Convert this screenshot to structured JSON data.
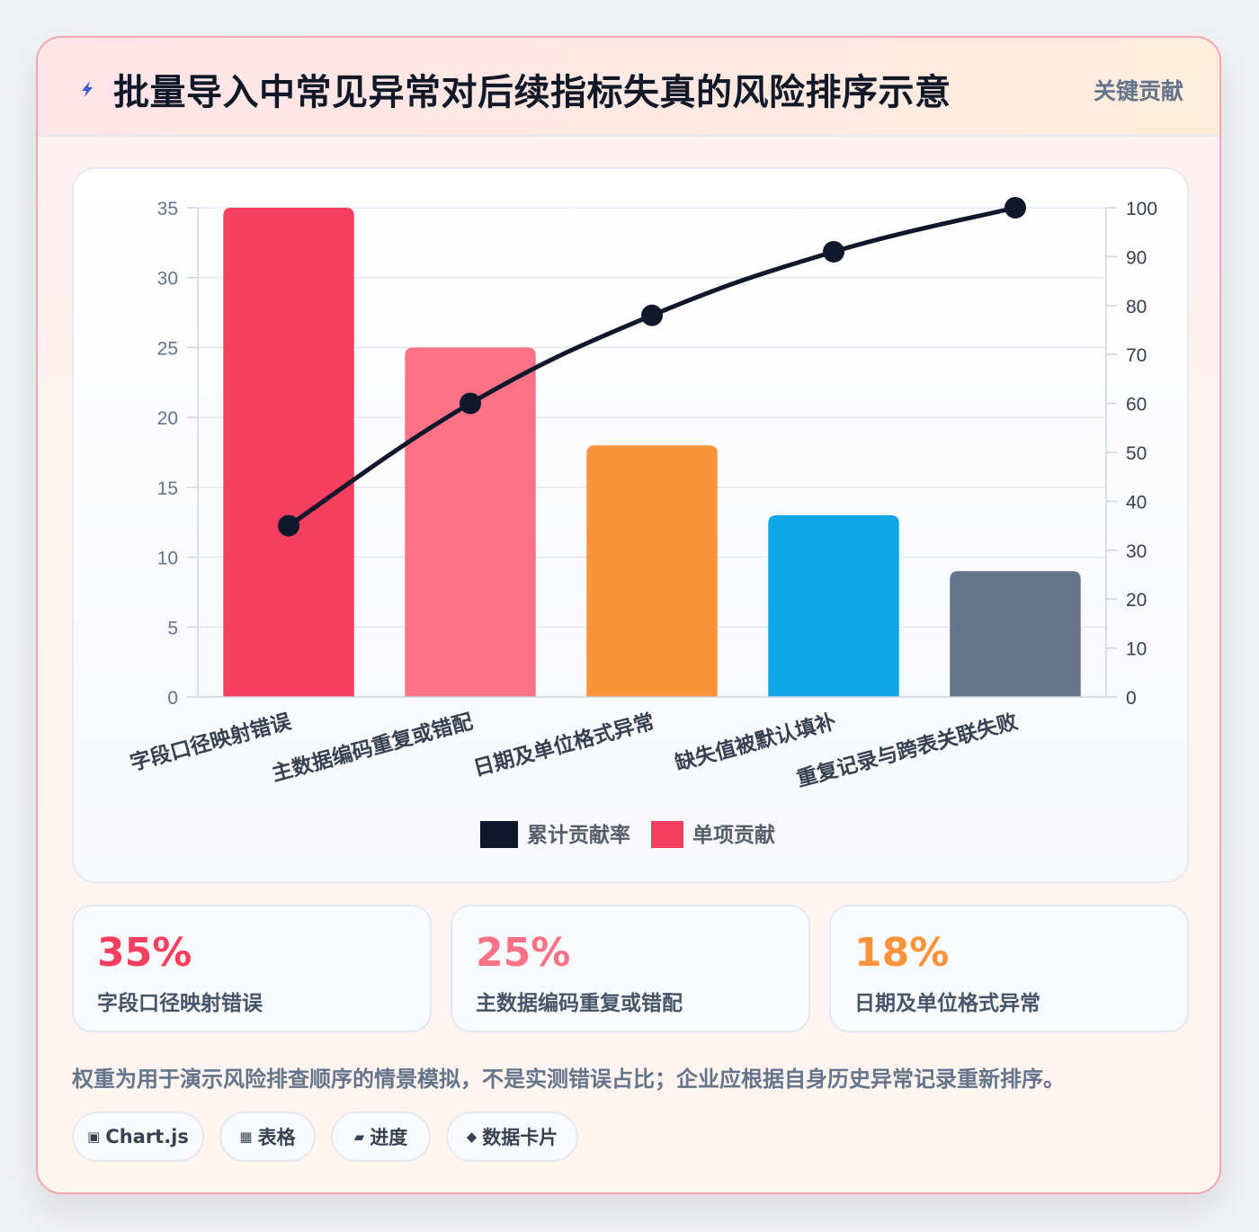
{
  "header": {
    "title": "批量导入中常见异常对后续指标失真的风险排序示意",
    "badge": "关键贡献",
    "icon": "lightning-icon",
    "icon_color": "#3b5bdb"
  },
  "chart_data": {
    "type": "bar",
    "categories": [
      "字段口径映射错误",
      "主数据编码重复或错配",
      "日期及单位格式异常",
      "缺失值被默认填补",
      "重复记录与跨表关联失败"
    ],
    "series": [
      {
        "name": "单项贡献",
        "type": "bar",
        "axis": "left",
        "values": [
          35,
          25,
          18,
          13,
          9
        ],
        "colors": [
          "#f43f5e",
          "#fb7185",
          "#fb923c",
          "#0ea5e9",
          "#64748b"
        ]
      },
      {
        "name": "累计贡献率",
        "type": "line",
        "axis": "right",
        "values": [
          35,
          60,
          78,
          91,
          100
        ],
        "color": "#0f172a"
      }
    ],
    "y_left": {
      "min": 0,
      "max": 35,
      "ticks": [
        0,
        5,
        10,
        15,
        20,
        25,
        30,
        35
      ]
    },
    "y_right": {
      "min": 0,
      "max": 100,
      "ticks": [
        0,
        10,
        20,
        30,
        40,
        50,
        60,
        70,
        80,
        90,
        100
      ]
    },
    "legend": [
      {
        "label": "累计贡献率",
        "color": "#0f172a"
      },
      {
        "label": "单项贡献",
        "color": "#f43f5e"
      }
    ],
    "legend_position": "bottom",
    "grid": true
  },
  "stats": [
    {
      "value": "35%",
      "label": "字段口径映射错误",
      "color": "#f43f5e"
    },
    {
      "value": "25%",
      "label": "主数据编码重复或错配",
      "color": "#fb7185"
    },
    {
      "value": "18%",
      "label": "日期及单位格式异常",
      "color": "#fb923c"
    }
  ],
  "footnote": "权重为用于演示风险排查顺序的情景模拟，不是实测错误占比；企业应根据自身历史异常记录重新排序。",
  "tags": [
    {
      "icon": "▣",
      "label": "Chart.js"
    },
    {
      "icon": "▦",
      "label": "表格"
    },
    {
      "icon": "▰",
      "label": "进度"
    },
    {
      "icon": "◆",
      "label": "数据卡片"
    }
  ]
}
